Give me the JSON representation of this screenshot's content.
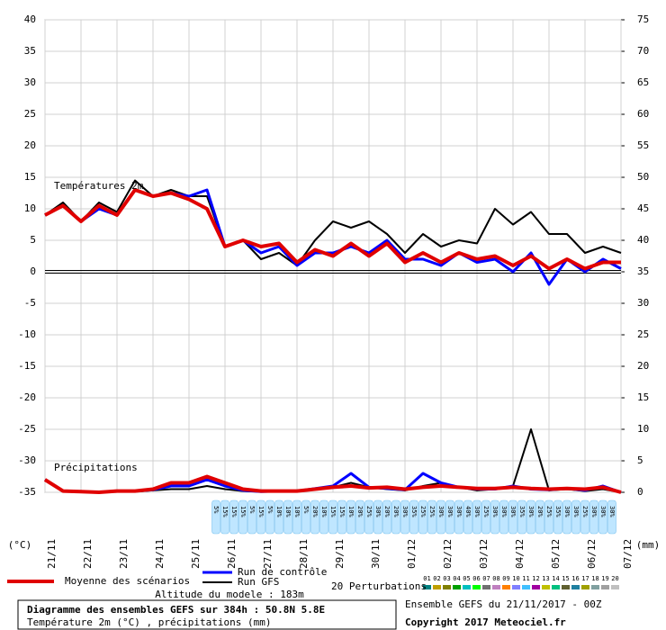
{
  "chart_data": {
    "type": "line",
    "title": "Diagramme des ensembles GEFS sur 384h : 50.8N 5.8E",
    "subtitle": "Température 2m (°C) , précipitations (mm)",
    "ylabel": "(°C)",
    "y2label": "(mm)",
    "temperature_label": "Températures 2m",
    "precipitation_label": "Précipitations",
    "altitude": "Altitude du modele : 183m",
    "run_info": "Ensemble GEFS du 21/11/2017 - 00Z",
    "copyright": "Copyright 2017 Meteociel.fr",
    "xlim": [
      0,
      384
    ],
    "xticks": [
      {
        "value": 0,
        "label": "21/11"
      },
      {
        "value": 24,
        "label": "22/11"
      },
      {
        "value": 48,
        "label": "23/11"
      },
      {
        "value": 72,
        "label": "24/11"
      },
      {
        "value": 96,
        "label": "25/11"
      },
      {
        "value": 120,
        "label": "26/11"
      },
      {
        "value": 144,
        "label": "27/11"
      },
      {
        "value": 168,
        "label": "28/11"
      },
      {
        "value": 192,
        "label": "29/11"
      },
      {
        "value": 216,
        "label": "30/11"
      },
      {
        "value": 240,
        "label": "01/12"
      },
      {
        "value": 264,
        "label": "02/12"
      },
      {
        "value": 288,
        "label": "03/12"
      },
      {
        "value": 312,
        "label": "04/12"
      },
      {
        "value": 336,
        "label": "05/12"
      },
      {
        "value": 360,
        "label": "06/12"
      },
      {
        "value": 384,
        "label": "07/12"
      }
    ],
    "ylim": [
      -35,
      40
    ],
    "yticks": [
      40,
      35,
      30,
      25,
      20,
      15,
      10,
      5,
      0,
      -5,
      -10,
      -15,
      -20,
      -25,
      -30,
      -35
    ],
    "y2lim": [
      0,
      75
    ],
    "y2ticks": [
      75,
      70,
      65,
      60,
      55,
      50,
      45,
      40,
      35,
      30,
      25,
      20,
      15,
      10,
      5,
      0
    ],
    "grid": true,
    "x": [
      0,
      12,
      24,
      36,
      48,
      60,
      72,
      84,
      96,
      108,
      120,
      132,
      144,
      156,
      168,
      180,
      192,
      204,
      216,
      228,
      240,
      252,
      264,
      276,
      288,
      300,
      312,
      324,
      336,
      348,
      360,
      372,
      384
    ],
    "series": [
      {
        "name": "Run GFS",
        "color": "#000000",
        "width": 2,
        "values": [
          9,
          11,
          8,
          11,
          9.5,
          14.5,
          12,
          13,
          12,
          12,
          4,
          5,
          2,
          3,
          1,
          5,
          8,
          7,
          8,
          6,
          3,
          6,
          4,
          5,
          4.5,
          10,
          7.5,
          9.5,
          6,
          6,
          3,
          4,
          3
        ]
      },
      {
        "name": "Run de contrôle",
        "color": "#0000ff",
        "width": 3,
        "values": [
          9,
          10.5,
          8,
          10,
          9,
          13,
          12,
          12.5,
          12,
          13,
          4,
          5,
          3,
          4,
          1,
          3,
          3,
          4,
          3,
          5,
          2,
          2,
          1,
          3,
          1.5,
          2,
          0,
          3,
          -2,
          2,
          0,
          2,
          0.5
        ]
      },
      {
        "name": "Moyenne des scénarios",
        "color": "#e00000",
        "width": 4,
        "values": [
          9,
          10.5,
          8,
          10.5,
          9,
          13,
          12,
          12.5,
          11.5,
          10,
          4,
          5,
          4,
          4.5,
          1.5,
          3.5,
          2.5,
          4.5,
          2.5,
          4.5,
          1.5,
          3,
          1.5,
          3,
          2,
          2.5,
          1,
          2.5,
          0.5,
          2,
          0.5,
          1.5,
          1.5
        ]
      },
      {
        "axis": "y2",
        "color": "#000000",
        "width": 2,
        "values": [
          2,
          0.2,
          0.1,
          0,
          0.2,
          0.1,
          0.3,
          0.5,
          0.5,
          1,
          0.5,
          0.2,
          0.1,
          0.1,
          0.2,
          0.5,
          0.8,
          1.5,
          0.8,
          0.5,
          0.3,
          1,
          1.5,
          0.8,
          0.3,
          0.5,
          1,
          10,
          0.3,
          0.5,
          0.2,
          0.5,
          0
        ]
      },
      {
        "axis": "y2",
        "color": "#0000ff",
        "width": 3,
        "values": [
          2,
          0.2,
          0.1,
          0,
          0.2,
          0.2,
          0.4,
          1,
          1,
          2,
          1,
          0.3,
          0.1,
          0.2,
          0.2,
          0.6,
          1,
          3,
          0.8,
          0.6,
          0.4,
          3,
          1.5,
          0.8,
          0.5,
          0.5,
          1,
          0.5,
          0.4,
          0.6,
          0.3,
          1,
          0
        ]
      },
      {
        "axis": "y2",
        "color": "#e00000",
        "width": 4,
        "values": [
          2,
          0.2,
          0.1,
          0,
          0.2,
          0.2,
          0.5,
          1.5,
          1.5,
          2.5,
          1.5,
          0.5,
          0.2,
          0.2,
          0.2,
          0.5,
          0.8,
          1,
          0.7,
          0.8,
          0.5,
          0.8,
          1,
          0.8,
          0.6,
          0.6,
          0.8,
          0.6,
          0.5,
          0.6,
          0.5,
          0.8,
          0
        ]
      }
    ],
    "legend_order": [
      2,
      1,
      0
    ],
    "perturbations": {
      "label": "20 Perturbations",
      "members": [
        "01",
        "02",
        "03",
        "04",
        "05",
        "06",
        "07",
        "08",
        "09",
        "10",
        "11",
        "12",
        "13",
        "14",
        "15",
        "16",
        "17",
        "18",
        "19",
        "20"
      ],
      "colors": [
        "#008080",
        "#c0a000",
        "#808000",
        "#00a000",
        "#00c0c0",
        "#00ff00",
        "#707070",
        "#c080c0",
        "#ff8000",
        "#8080ff",
        "#40c0ff",
        "#a000a0",
        "#c0c000",
        "#00c080",
        "#606030",
        "#2080a0",
        "#a0a000",
        "#80a0a0",
        "#a0a0a0",
        "#c0c0c0"
      ]
    },
    "probabilities": {
      "x": [
        114,
        120,
        126,
        132,
        138,
        144,
        150,
        156,
        162,
        168,
        174,
        180,
        186,
        192,
        198,
        204,
        210,
        216,
        222,
        228,
        234,
        240,
        246,
        252,
        258,
        264,
        270,
        276,
        282,
        288,
        294,
        300,
        306,
        312,
        318,
        324,
        330,
        336,
        342,
        348,
        354,
        360,
        366,
        372,
        378
      ],
      "values": [
        5,
        15,
        15,
        15,
        5,
        15,
        5,
        10,
        10,
        10,
        5,
        20,
        10,
        15,
        15,
        10,
        20,
        25,
        30,
        20,
        20,
        30,
        35,
        25,
        25,
        30,
        30,
        30,
        40,
        30,
        25,
        30,
        30,
        30,
        35,
        30,
        20,
        25,
        35,
        30,
        30,
        25,
        30,
        30,
        30
      ],
      "value_labels": [
        "5%",
        "15%",
        "15%",
        "15%",
        "5%",
        "15%",
        "5%",
        "10%",
        "10%",
        "10%",
        "5%",
        "20%",
        "10%",
        "15%",
        "15%",
        "10%",
        "20%",
        "25%",
        "30%",
        "20%",
        "20%",
        "30%",
        "35%",
        "25%",
        "25%",
        "30%",
        "30%",
        "30%",
        "40%",
        "30%",
        "25%",
        "30%",
        "30%",
        "30%",
        "35%",
        "30%",
        "20%",
        "25%",
        "35%",
        "30%",
        "30%",
        "25%",
        "30%",
        "30%",
        "30%"
      ]
    }
  }
}
